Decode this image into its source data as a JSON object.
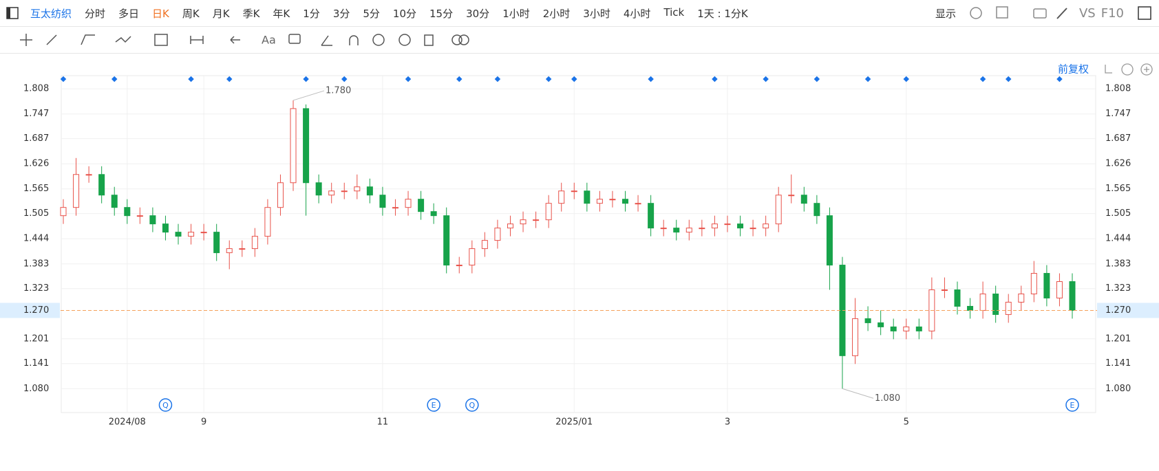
{
  "toolbar": {
    "symbol": "互太纺织",
    "periods": [
      "分时",
      "多日",
      "日K",
      "周K",
      "月K",
      "季K",
      "年K",
      "1分",
      "3分",
      "5分",
      "10分",
      "15分",
      "30分",
      "1小时",
      "2小时",
      "3小时",
      "4小时",
      "Tick"
    ],
    "active_period": 2,
    "range_select": "1天 : 1分K",
    "display": "显示",
    "compare": "VS",
    "f10": "F10",
    "text_tool": "Aa",
    "adjust": "前复权"
  },
  "chart_data": {
    "type": "candlestick",
    "categories": [
      null,
      null,
      null,
      null,
      null,
      "2024/08",
      null,
      null,
      null,
      null,
      null,
      "9",
      null,
      null,
      null,
      null,
      null,
      null,
      null,
      null,
      null,
      null,
      null,
      null,
      null,
      "11",
      null,
      null,
      null,
      null,
      null,
      null,
      null,
      null,
      null,
      null,
      null,
      null,
      null,
      null,
      "2025/01",
      null,
      null,
      null,
      null,
      null,
      null,
      null,
      null,
      null,
      null,
      null,
      "3",
      null,
      null,
      null,
      null,
      null,
      null,
      null,
      null,
      null,
      null,
      null,
      null,
      null,
      "5",
      null,
      null,
      null,
      null,
      null,
      null,
      null,
      null,
      null,
      null,
      null,
      null,
      null
    ],
    "open": [
      1.5,
      1.52,
      1.6,
      1.6,
      1.55,
      1.52,
      1.5,
      1.5,
      1.48,
      1.46,
      1.45,
      1.46,
      1.46,
      1.41,
      1.42,
      1.42,
      1.45,
      1.52,
      1.58,
      1.76,
      1.58,
      1.55,
      1.56,
      1.56,
      1.57,
      1.55,
      1.52,
      1.52,
      1.54,
      1.51,
      1.5,
      1.38,
      1.38,
      1.42,
      1.44,
      1.47,
      1.48,
      1.49,
      1.49,
      1.53,
      1.56,
      1.56,
      1.53,
      1.54,
      1.54,
      1.53,
      1.53,
      1.47,
      1.47,
      1.46,
      1.47,
      1.47,
      1.48,
      1.48,
      1.47,
      1.47,
      1.48,
      1.55,
      1.55,
      1.53,
      1.5,
      1.38,
      1.16,
      1.25,
      1.24,
      1.23,
      1.22,
      1.23,
      1.22,
      1.32,
      1.32,
      1.28,
      1.27,
      1.31,
      1.26,
      1.29,
      1.31,
      1.36,
      1.3,
      1.34
    ],
    "high": [
      1.54,
      1.64,
      1.62,
      1.62,
      1.57,
      1.54,
      1.52,
      1.52,
      1.5,
      1.48,
      1.48,
      1.48,
      1.48,
      1.44,
      1.44,
      1.47,
      1.54,
      1.6,
      1.78,
      1.77,
      1.6,
      1.58,
      1.58,
      1.6,
      1.59,
      1.57,
      1.54,
      1.56,
      1.56,
      1.53,
      1.52,
      1.4,
      1.44,
      1.46,
      1.49,
      1.5,
      1.51,
      1.51,
      1.55,
      1.58,
      1.58,
      1.58,
      1.56,
      1.56,
      1.56,
      1.55,
      1.55,
      1.49,
      1.49,
      1.49,
      1.49,
      1.5,
      1.5,
      1.5,
      1.49,
      1.5,
      1.57,
      1.6,
      1.57,
      1.55,
      1.52,
      1.4,
      1.3,
      1.28,
      1.27,
      1.25,
      1.25,
      1.25,
      1.35,
      1.35,
      1.34,
      1.3,
      1.34,
      1.33,
      1.31,
      1.33,
      1.39,
      1.38,
      1.36,
      1.36
    ],
    "low": [
      1.48,
      1.5,
      1.58,
      1.53,
      1.5,
      1.48,
      1.48,
      1.46,
      1.44,
      1.43,
      1.43,
      1.44,
      1.39,
      1.37,
      1.4,
      1.4,
      1.43,
      1.5,
      1.56,
      1.5,
      1.53,
      1.53,
      1.54,
      1.54,
      1.53,
      1.5,
      1.5,
      1.5,
      1.49,
      1.48,
      1.36,
      1.36,
      1.36,
      1.4,
      1.42,
      1.45,
      1.46,
      1.47,
      1.47,
      1.51,
      1.54,
      1.51,
      1.51,
      1.52,
      1.51,
      1.51,
      1.45,
      1.45,
      1.44,
      1.44,
      1.45,
      1.45,
      1.46,
      1.45,
      1.45,
      1.45,
      1.46,
      1.53,
      1.51,
      1.48,
      1.32,
      1.08,
      1.14,
      1.22,
      1.21,
      1.2,
      1.2,
      1.2,
      1.2,
      1.3,
      1.26,
      1.25,
      1.25,
      1.24,
      1.24,
      1.27,
      1.29,
      1.28,
      1.28,
      1.25
    ],
    "close": [
      1.52,
      1.6,
      1.6,
      1.55,
      1.52,
      1.5,
      1.5,
      1.48,
      1.46,
      1.45,
      1.46,
      1.46,
      1.41,
      1.42,
      1.42,
      1.45,
      1.52,
      1.58,
      1.76,
      1.58,
      1.55,
      1.56,
      1.56,
      1.57,
      1.55,
      1.52,
      1.52,
      1.54,
      1.51,
      1.5,
      1.38,
      1.38,
      1.42,
      1.44,
      1.47,
      1.48,
      1.49,
      1.49,
      1.53,
      1.56,
      1.56,
      1.53,
      1.54,
      1.54,
      1.53,
      1.53,
      1.47,
      1.47,
      1.46,
      1.47,
      1.47,
      1.48,
      1.48,
      1.47,
      1.47,
      1.48,
      1.55,
      1.55,
      1.53,
      1.5,
      1.38,
      1.16,
      1.25,
      1.24,
      1.23,
      1.22,
      1.23,
      1.22,
      1.32,
      1.32,
      1.28,
      1.27,
      1.31,
      1.26,
      1.29,
      1.31,
      1.36,
      1.3,
      1.34,
      1.27
    ],
    "up_color": "#e8524a",
    "down_color": "#17a34a",
    "events": [
      null,
      null,
      null,
      null,
      null,
      null,
      null,
      null,
      "Q",
      null,
      null,
      null,
      null,
      null,
      null,
      null,
      null,
      null,
      null,
      null,
      null,
      null,
      null,
      null,
      null,
      null,
      null,
      null,
      null,
      "E",
      null,
      null,
      "Q",
      null,
      null,
      null,
      null,
      null,
      null,
      null,
      null,
      null,
      null,
      null,
      null,
      null,
      null,
      null,
      null,
      null,
      null,
      null,
      null,
      null,
      null,
      null,
      null,
      null,
      null,
      null,
      null,
      null,
      null,
      null,
      null,
      null,
      null,
      null,
      null,
      null,
      null,
      null,
      null,
      null,
      null,
      null,
      null,
      null,
      null,
      "E"
    ],
    "ylim": [
      1.022,
      1.84
    ],
    "yticks": [
      {
        "value": 1.08,
        "label": "1.080"
      },
      1.141,
      1.201,
      1.323,
      1.383,
      1.444,
      1.505,
      1.565,
      1.626,
      1.687,
      1.747,
      1.808
    ],
    "last_price": {
      "value": 1.27,
      "label": "1.270"
    },
    "high_label": {
      "value": 1.78,
      "label": "1.780"
    },
    "low_label": {
      "value": 1.08,
      "label": "1.080"
    },
    "grid": true
  }
}
